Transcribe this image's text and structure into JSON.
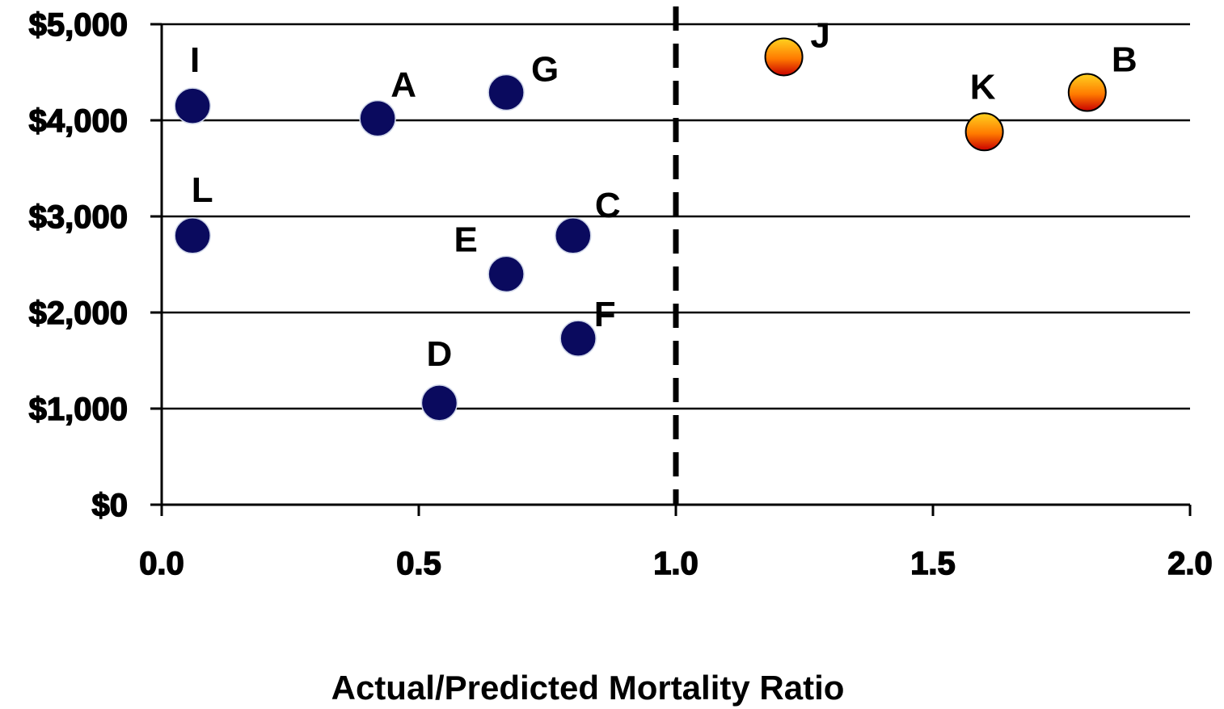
{
  "chart_data": {
    "type": "scatter",
    "title": "",
    "xlabel": "Actual/Predicted Mortality Ratio",
    "ylabel": "",
    "xlim": [
      0,
      2
    ],
    "ylim": [
      0,
      5000
    ],
    "x_ticks": [
      "0.0",
      "0.5",
      "1.0",
      "1.5",
      "2.0"
    ],
    "y_ticks": [
      "$0",
      "$1,000",
      "$2,000",
      "$3,000",
      "$4,000",
      "$5,000"
    ],
    "grid": "horizontal",
    "reference_line": {
      "x": 1.0,
      "style": "dashed"
    },
    "colors": {
      "below_ratio": "#0a0a5e",
      "above_ratio_top": "#ffd21f",
      "above_ratio_bottom": "#c80000"
    },
    "points": [
      {
        "label": "I",
        "x": 0.06,
        "y": 4150,
        "group": "below_ratio"
      },
      {
        "label": "A",
        "x": 0.42,
        "y": 4020,
        "group": "below_ratio"
      },
      {
        "label": "G",
        "x": 0.67,
        "y": 4290,
        "group": "below_ratio"
      },
      {
        "label": "L",
        "x": 0.06,
        "y": 2800,
        "group": "below_ratio"
      },
      {
        "label": "E",
        "x": 0.67,
        "y": 2400,
        "group": "below_ratio"
      },
      {
        "label": "C",
        "x": 0.8,
        "y": 2800,
        "group": "below_ratio"
      },
      {
        "label": "F",
        "x": 0.81,
        "y": 1730,
        "group": "below_ratio"
      },
      {
        "label": "D",
        "x": 0.54,
        "y": 1060,
        "group": "below_ratio"
      },
      {
        "label": "J",
        "x": 1.21,
        "y": 4660,
        "group": "above_ratio"
      },
      {
        "label": "K",
        "x": 1.6,
        "y": 3880,
        "group": "above_ratio"
      },
      {
        "label": "B",
        "x": 1.8,
        "y": 4290,
        "group": "above_ratio"
      }
    ]
  }
}
